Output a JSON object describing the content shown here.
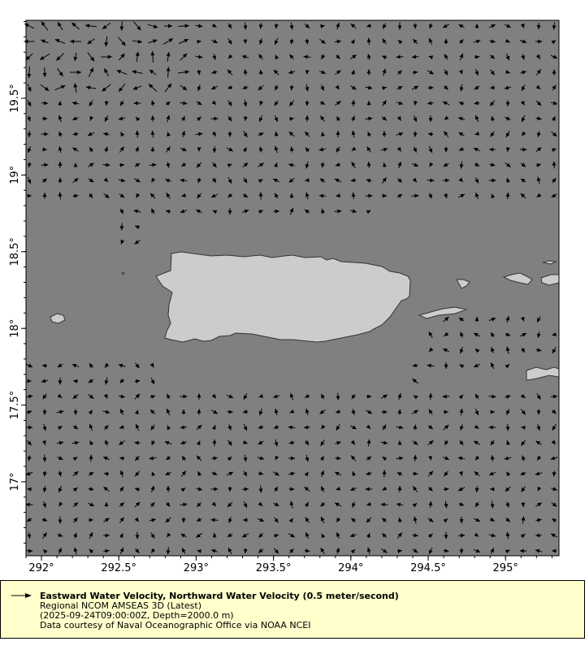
{
  "map": {
    "x_ticks": [
      "292°",
      "292.5°",
      "293°",
      "293.5°",
      "294°",
      "294.5°",
      "295°"
    ],
    "y_ticks": [
      "19.5°",
      "19°",
      "18.5°",
      "18°",
      "17.5°",
      "17°"
    ],
    "ocean_color": "#808080",
    "land_color": "#cccccc",
    "vector_color": "#000000"
  },
  "legend": {
    "icon": "arrow-right-icon",
    "title": "Eastward Water Velocity, Northward Water Velocity (0.5 meter/second)",
    "line2": "Regional NCOM AMSEAS 3D (Latest)",
    "line3": "(2025-09-24T09:00:00Z, Depth=2000.0 m)",
    "line4": "Data courtesy of Naval Oceanographic Office via NOAA NCEI",
    "background": "#ffffcc"
  }
}
